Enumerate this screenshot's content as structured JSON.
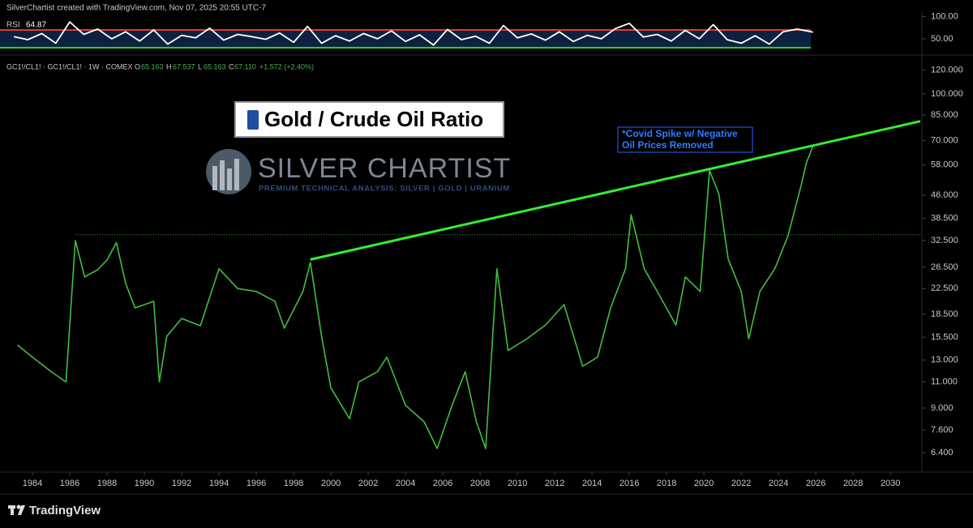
{
  "header": {
    "credit": "SilverChartist created with TradingView.com, Nov 07, 2025 20:55 UTC-7"
  },
  "chart_data": [
    {
      "type": "line",
      "title": "Gold / Crude Oil Ratio",
      "symbol": "GC1!/CL1! · GC1!/CL1! · 1W · COMEX",
      "ohlc": [
        {
          "label": "O",
          "value": "65.163"
        },
        {
          "label": "H",
          "value": "67.537"
        },
        {
          "label": "L",
          "value": "65.163"
        },
        {
          "label": "C",
          "value": "67.110"
        }
      ],
      "change": "+1.572 (+2.40%)",
      "watermark": {
        "name": "SILVER CHARTIST",
        "tagline": "PREMIUM TECHNICAL ANALYSIS: SILVER | GOLD | URANIUM"
      },
      "annotation": [
        "*Covid Spike w/ Negative",
        "Oil Prices Removed"
      ],
      "log_scale": true,
      "grid": false,
      "color": "#3fbf3f",
      "x": [
        1983.2,
        1984,
        1985,
        1985.8,
        1986.3,
        1986.8,
        1987.5,
        1988,
        1988.5,
        1989,
        1989.5,
        1990.5,
        1990.8,
        1991.2,
        1992,
        1993,
        1994,
        1995,
        1996,
        1997,
        1997.5,
        1998.5,
        1998.9,
        1999.5,
        2000,
        2001,
        2001.5,
        2002.5,
        2003,
        2004,
        2005,
        2005.7,
        2006.5,
        2007.2,
        2007.8,
        2008.3,
        2008.9,
        2009.5,
        2010.5,
        2011.5,
        2012.5,
        2013.5,
        2014.3,
        2015,
        2015.8,
        2016.1,
        2016.8,
        2017.5,
        2018.5,
        2019,
        2019.8,
        2020.3,
        2020.8,
        2021.3,
        2022,
        2022.4,
        2023,
        2023.8,
        2024.5,
        2025.2,
        2025.5,
        2025.85
      ],
      "values": [
        14.6,
        13.3,
        11.9,
        11,
        32.5,
        24.6,
        26,
        28,
        32,
        23.4,
        19.4,
        20.4,
        11,
        15.6,
        17.9,
        16.9,
        26.2,
        22.5,
        22,
        20.4,
        16.6,
        22,
        27.5,
        15.6,
        10.5,
        8.3,
        11,
        11.9,
        13.3,
        9.2,
        8.1,
        6.6,
        9.2,
        11.9,
        8.1,
        6.6,
        26.2,
        14,
        15.3,
        17,
        19.9,
        12.4,
        13.3,
        19.4,
        26.2,
        39.6,
        26.2,
        22,
        17,
        24.6,
        22,
        55.6,
        46.4,
        28.2,
        22,
        15.3,
        22,
        26.2,
        33.6,
        49.3,
        59.1,
        67.11
      ],
      "trendline": {
        "x": [
          1998.9,
          2031.6
        ],
        "values": [
          28.1,
          81.1
        ],
        "color": "#33ee33"
      },
      "level_line": 34,
      "xlim": [
        1982.26,
        2031.6
      ],
      "xticks": [
        1984,
        1986,
        1988,
        1990,
        1992,
        1994,
        1996,
        1998,
        2000,
        2002,
        2004,
        2006,
        2008,
        2010,
        2012,
        2014,
        2016,
        2018,
        2020,
        2022,
        2024,
        2026,
        2028,
        2030
      ],
      "ylim": [
        5.9,
        133
      ],
      "yticks": [
        {
          "value": 120,
          "label": "120.000"
        },
        {
          "value": 100,
          "label": "100.000"
        },
        {
          "value": 85,
          "label": "85.000"
        },
        {
          "value": 70,
          "label": "70.000"
        },
        {
          "value": 58,
          "label": "58.000"
        },
        {
          "value": 46,
          "label": "46.000"
        },
        {
          "value": 38.5,
          "label": "38.500"
        },
        {
          "value": 32.5,
          "label": "32.500"
        },
        {
          "value": 26.5,
          "label": "26.500"
        },
        {
          "value": 22.5,
          "label": "22.500"
        },
        {
          "value": 18.5,
          "label": "18.500"
        },
        {
          "value": 15.5,
          "label": "15.500"
        },
        {
          "value": 13,
          "label": "13.000"
        },
        {
          "value": 11,
          "label": "11.000"
        },
        {
          "value": 9,
          "label": "9.000"
        },
        {
          "value": 7.6,
          "label": "7.600"
        },
        {
          "value": 6.4,
          "label": "6.400"
        }
      ]
    },
    {
      "type": "line",
      "title": "RSI",
      "color": "#ffffff",
      "log_scale": false,
      "x": [
        1983,
        1983.75,
        1984.5,
        1985.25,
        1986,
        1986.75,
        1987.5,
        1988.25,
        1989,
        1989.75,
        1990.5,
        1991.25,
        1992,
        1992.75,
        1993.5,
        1994.25,
        1995,
        1995.75,
        1996.5,
        1997.25,
        1998,
        1998.75,
        1999.5,
        2000.25,
        2001,
        2001.75,
        2002.5,
        2003.25,
        2004,
        2004.75,
        2005.5,
        2006.25,
        2007,
        2007.75,
        2008.5,
        2009.25,
        2010,
        2010.75,
        2011.5,
        2012.25,
        2013,
        2013.75,
        2014.5,
        2015.25,
        2016,
        2016.75,
        2017.5,
        2018.25,
        2019,
        2019.75,
        2020.5,
        2021.25,
        2022,
        2022.75,
        2023.5,
        2024.25,
        2025,
        2025.85
      ],
      "values": [
        55,
        48,
        62,
        40,
        88,
        60,
        72,
        50,
        66,
        45,
        70,
        38,
        58,
        52,
        74,
        47,
        60,
        55,
        49,
        63,
        42,
        78,
        40,
        57,
        45,
        62,
        50,
        68,
        44,
        59,
        36,
        71,
        48,
        56,
        40,
        80,
        52,
        61,
        47,
        66,
        44,
        58,
        50,
        73,
        85,
        54,
        60,
        45,
        69,
        50,
        82,
        48,
        40,
        57,
        38,
        66,
        72,
        64.87
      ],
      "levels": [
        70,
        30
      ],
      "level_colors": [
        "#e53935",
        "#22dd22"
      ],
      "band_color": "#0d2140",
      "xlim": [
        1982.26,
        2031.6
      ],
      "ylim": [
        17,
        112
      ],
      "yticks": [
        {
          "value": 100,
          "label": "100.00"
        },
        {
          "value": 50,
          "label": "50.00"
        }
      ]
    }
  ],
  "footer": {
    "brand": "TradingView"
  }
}
